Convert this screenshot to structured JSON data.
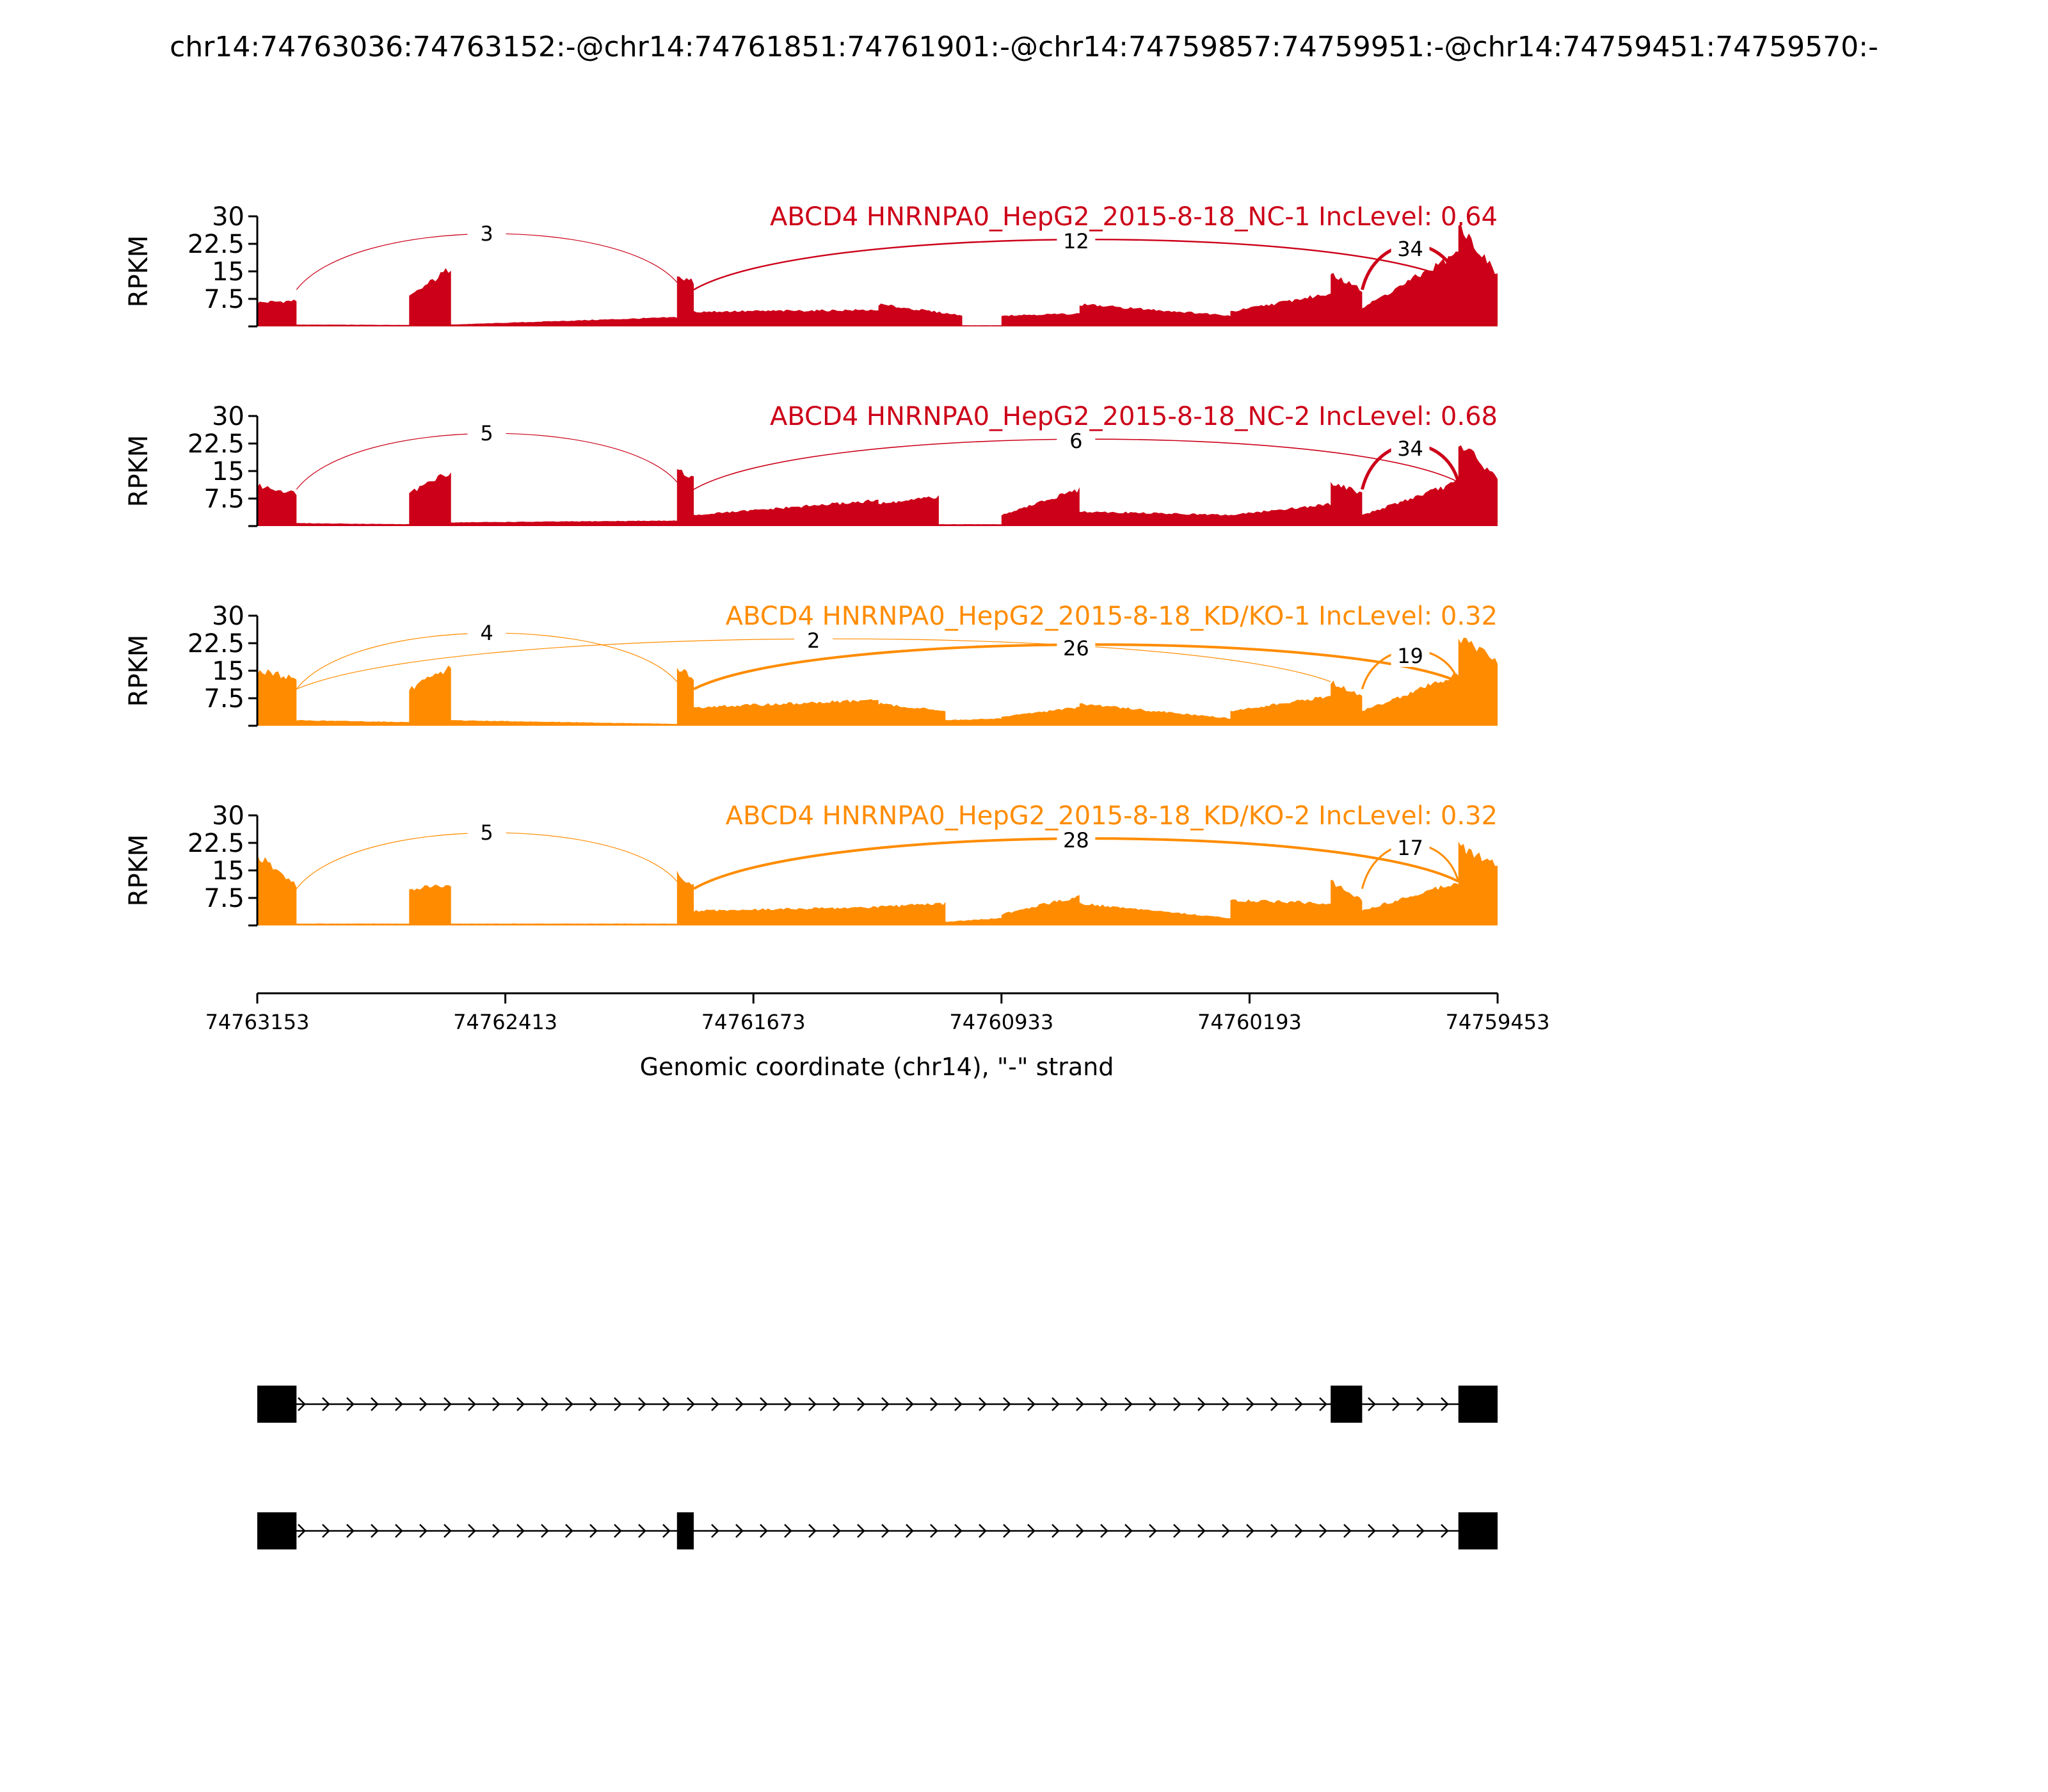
{
  "title": "chr14:74763036:74763152:-@chr14:74761851:74761901:-@chr14:74759857:74759951:-@chr14:74759451:74759570:-",
  "colors": {
    "nc": "#cc0018",
    "kd": "#ff8c00",
    "axis": "#000000"
  },
  "chart_data": {
    "type": "area",
    "ylabel": "RPKM",
    "yticks": [
      "7.5",
      "15",
      "22.5",
      "30"
    ],
    "ylim": [
      0,
      30
    ],
    "xlabel": "Genomic coordinate (chr14), \"-\" strand",
    "xticks": [
      "74763153",
      "74762413",
      "74761673",
      "74760933",
      "74760193",
      "74759453"
    ],
    "xlim": [
      74763153,
      74759453
    ],
    "tracks": [
      {
        "label": "ABCD4 HNRNPA0_HepG2_2015-8-18_NC-1 IncLevel: 0.64",
        "color": "nc",
        "segments": [
          {
            "x0": 74763153,
            "x1": 74763036,
            "y0": 6.5,
            "y1": 7
          },
          {
            "x0": 74763036,
            "x1": 74762700,
            "y0": 0.5,
            "y1": 0.4
          },
          {
            "x0": 74762700,
            "x1": 74762575,
            "y0": 8,
            "y1": 16
          },
          {
            "x0": 74762575,
            "x1": 74761901,
            "y0": 0.5,
            "y1": 2.5
          },
          {
            "x0": 74761901,
            "x1": 74761851,
            "y0": 14,
            "y1": 12
          },
          {
            "x0": 74761851,
            "x1": 74761300,
            "y0": 4,
            "y1": 4.5
          },
          {
            "x0": 74761300,
            "x1": 74761050,
            "y0": 6,
            "y1": 3
          },
          {
            "x0": 74761050,
            "x1": 74760933,
            "y0": 0.3,
            "y1": 0.3
          },
          {
            "x0": 74760933,
            "x1": 74760700,
            "y0": 3,
            "y1": 3.5
          },
          {
            "x0": 74760700,
            "x1": 74760250,
            "y0": 6,
            "y1": 3
          },
          {
            "x0": 74760250,
            "x1": 74759951,
            "y0": 4,
            "y1": 9
          },
          {
            "x0": 74759951,
            "x1": 74759857,
            "y0": 14,
            "y1": 10
          },
          {
            "x0": 74759857,
            "x1": 74759570,
            "y0": 5,
            "y1": 20
          },
          {
            "x0": 74759570,
            "x1": 74759453,
            "y0": 28,
            "y1": 14
          }
        ],
        "junctions": [
          {
            "from": 74763036,
            "to": 74761901,
            "count": "3",
            "weight": 0.5
          },
          {
            "from": 74761851,
            "to": 74759570,
            "count": "12",
            "weight": 1.2
          },
          {
            "from": 74759857,
            "to": 74759570,
            "count": "34",
            "weight": 2.5
          }
        ]
      },
      {
        "label": "ABCD4 HNRNPA0_HepG2_2015-8-18_NC-2 IncLevel: 0.68",
        "color": "nc",
        "segments": [
          {
            "x0": 74763153,
            "x1": 74763036,
            "y0": 11,
            "y1": 9
          },
          {
            "x0": 74763036,
            "x1": 74762700,
            "y0": 0.8,
            "y1": 0.5
          },
          {
            "x0": 74762700,
            "x1": 74762575,
            "y0": 9,
            "y1": 15
          },
          {
            "x0": 74762575,
            "x1": 74761901,
            "y0": 1,
            "y1": 1.5
          },
          {
            "x0": 74761901,
            "x1": 74761851,
            "y0": 15,
            "y1": 13
          },
          {
            "x0": 74761851,
            "x1": 74761300,
            "y0": 3,
            "y1": 7
          },
          {
            "x0": 74761300,
            "x1": 74761120,
            "y0": 6,
            "y1": 8
          },
          {
            "x0": 74761120,
            "x1": 74760933,
            "y0": 0.5,
            "y1": 0.5
          },
          {
            "x0": 74760933,
            "x1": 74760700,
            "y0": 3,
            "y1": 10
          },
          {
            "x0": 74760700,
            "x1": 74760250,
            "y0": 4,
            "y1": 3
          },
          {
            "x0": 74760250,
            "x1": 74759951,
            "y0": 3,
            "y1": 6
          },
          {
            "x0": 74759951,
            "x1": 74759857,
            "y0": 12,
            "y1": 9
          },
          {
            "x0": 74759857,
            "x1": 74759570,
            "y0": 3,
            "y1": 12
          },
          {
            "x0": 74759570,
            "x1": 74759453,
            "y0": 23,
            "y1": 13
          }
        ],
        "junctions": [
          {
            "from": 74763036,
            "to": 74761901,
            "count": "5",
            "weight": 0.6
          },
          {
            "from": 74761851,
            "to": 74759570,
            "count": "6",
            "weight": 0.8
          },
          {
            "from": 74759857,
            "to": 74759570,
            "count": "34",
            "weight": 2.5
          }
        ]
      },
      {
        "label": "ABCD4 HNRNPA0_HepG2_2015-8-18_KD/KO-1 IncLevel: 0.32",
        "color": "kd",
        "segments": [
          {
            "x0": 74763153,
            "x1": 74763036,
            "y0": 15,
            "y1": 13
          },
          {
            "x0": 74763036,
            "x1": 74762700,
            "y0": 1.5,
            "y1": 1
          },
          {
            "x0": 74762700,
            "x1": 74762575,
            "y0": 10,
            "y1": 16
          },
          {
            "x0": 74762575,
            "x1": 74761901,
            "y0": 1.5,
            "y1": 0.5
          },
          {
            "x0": 74761901,
            "x1": 74761851,
            "y0": 16,
            "y1": 13
          },
          {
            "x0": 74761851,
            "x1": 74761300,
            "y0": 5,
            "y1": 7
          },
          {
            "x0": 74761300,
            "x1": 74761100,
            "y0": 6,
            "y1": 4
          },
          {
            "x0": 74761100,
            "x1": 74760933,
            "y0": 1.5,
            "y1": 2
          },
          {
            "x0": 74760933,
            "x1": 74760700,
            "y0": 2.5,
            "y1": 5
          },
          {
            "x0": 74760700,
            "x1": 74760250,
            "y0": 6,
            "y1": 2
          },
          {
            "x0": 74760250,
            "x1": 74759951,
            "y0": 4,
            "y1": 8
          },
          {
            "x0": 74759951,
            "x1": 74759857,
            "y0": 12,
            "y1": 8
          },
          {
            "x0": 74759857,
            "x1": 74759570,
            "y0": 4,
            "y1": 14
          },
          {
            "x0": 74759570,
            "x1": 74759453,
            "y0": 24,
            "y1": 18
          }
        ],
        "junctions": [
          {
            "from": 74763036,
            "to": 74761901,
            "count": "4",
            "weight": 0.6
          },
          {
            "from": 74763036,
            "to": 74759951,
            "count": "2",
            "weight": 0.4
          },
          {
            "from": 74761851,
            "to": 74759570,
            "count": "26",
            "weight": 2.0
          },
          {
            "from": 74759857,
            "to": 74759570,
            "count": "19",
            "weight": 1.6
          }
        ]
      },
      {
        "label": "ABCD4 HNRNPA0_HepG2_2015-8-18_KD/KO-2 IncLevel: 0.32",
        "color": "kd",
        "segments": [
          {
            "x0": 74763153,
            "x1": 74763036,
            "y0": 19,
            "y1": 11
          },
          {
            "x0": 74763036,
            "x1": 74762700,
            "y0": 0.5,
            "y1": 0.5
          },
          {
            "x0": 74762700,
            "x1": 74762575,
            "y0": 10,
            "y1": 11
          },
          {
            "x0": 74762575,
            "x1": 74761901,
            "y0": 0.5,
            "y1": 0.5
          },
          {
            "x0": 74761901,
            "x1": 74761851,
            "y0": 14,
            "y1": 11
          },
          {
            "x0": 74761851,
            "x1": 74761300,
            "y0": 4,
            "y1": 5
          },
          {
            "x0": 74761300,
            "x1": 74761100,
            "y0": 5,
            "y1": 6
          },
          {
            "x0": 74761100,
            "x1": 74760933,
            "y0": 1,
            "y1": 2
          },
          {
            "x0": 74760933,
            "x1": 74760700,
            "y0": 3,
            "y1": 8
          },
          {
            "x0": 74760700,
            "x1": 74760250,
            "y0": 6,
            "y1": 2
          },
          {
            "x0": 74760250,
            "x1": 74759951,
            "y0": 7,
            "y1": 6
          },
          {
            "x0": 74759951,
            "x1": 74759857,
            "y0": 12,
            "y1": 7
          },
          {
            "x0": 74759857,
            "x1": 74759570,
            "y0": 4,
            "y1": 12
          },
          {
            "x0": 74759570,
            "x1": 74759453,
            "y0": 22,
            "y1": 16
          }
        ],
        "junctions": [
          {
            "from": 74763036,
            "to": 74761901,
            "count": "5",
            "weight": 0.6
          },
          {
            "from": 74761851,
            "to": 74759570,
            "count": "28",
            "weight": 2.0
          },
          {
            "from": 74759857,
            "to": 74759570,
            "count": "17",
            "weight": 1.5
          }
        ]
      }
    ],
    "isoforms": [
      {
        "exons": [
          [
            74763153,
            74763036
          ],
          [
            74759951,
            74759857
          ],
          [
            74759570,
            74759453
          ]
        ]
      },
      {
        "exons": [
          [
            74763153,
            74763036
          ],
          [
            74761901,
            74761851
          ],
          [
            74759570,
            74759453
          ]
        ]
      }
    ]
  }
}
